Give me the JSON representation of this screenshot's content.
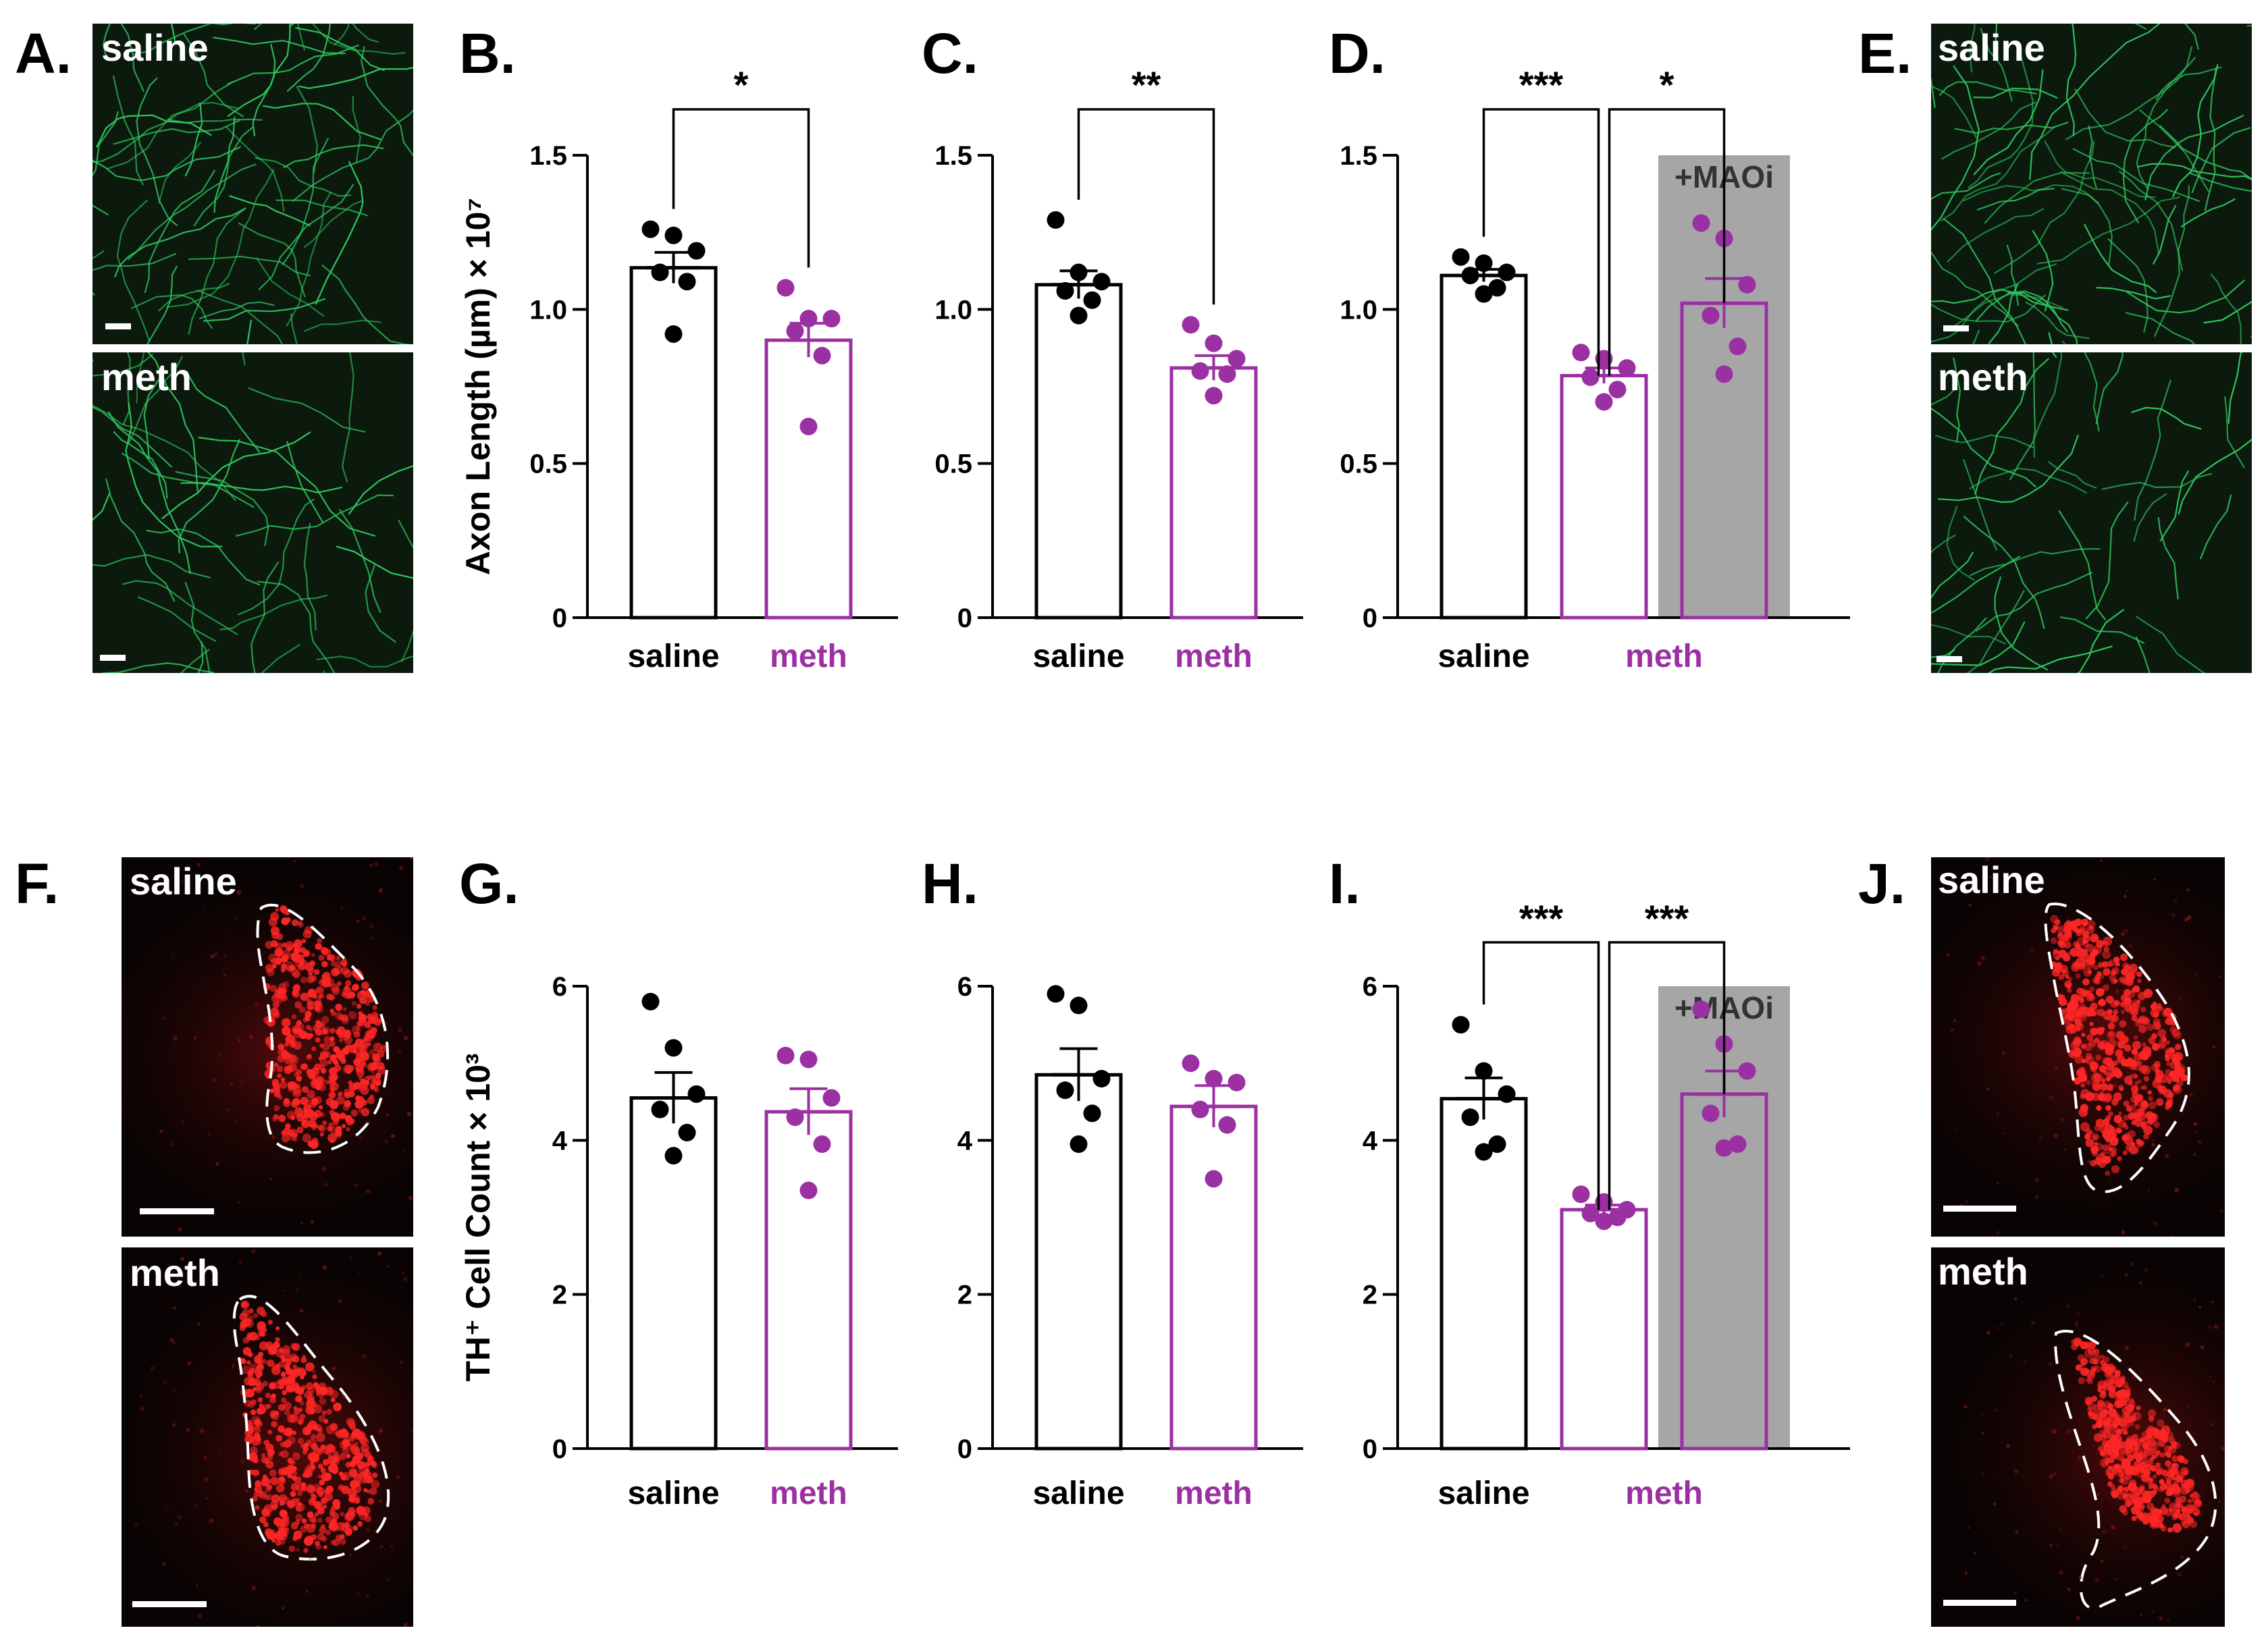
{
  "panels": {
    "A": {
      "letter": "A.",
      "top": "saline",
      "bottom": "meth"
    },
    "E": {
      "letter": "E.",
      "top": "saline",
      "bottom": "meth"
    },
    "F": {
      "letter": "F.",
      "top": "saline",
      "bottom": "meth"
    },
    "J": {
      "letter": "J.",
      "top": "saline",
      "bottom": "meth"
    }
  },
  "colors": {
    "saline": "#000000",
    "meth": "#9b30a3",
    "maoi_shade": "#a6a6a6",
    "axon_green": "#2fc860",
    "th_red": "#ff2626",
    "green_bg": "#0b1a0d",
    "red_bg": "#0a0303"
  },
  "chart_data": [
    {
      "panel": "B.",
      "type": "bar",
      "row": "axon",
      "categories": [
        "saline",
        "meth"
      ],
      "series": [
        {
          "name": "saline",
          "mean": 1.135,
          "sem": 0.05,
          "points": [
            1.26,
            1.24,
            1.19,
            1.12,
            1.09,
            0.92
          ]
        },
        {
          "name": "meth",
          "mean": 0.9,
          "sem": 0.055,
          "points": [
            1.07,
            0.97,
            0.97,
            0.93,
            0.85,
            0.62
          ]
        }
      ],
      "ylim": [
        0,
        1.5
      ],
      "yticks": [
        "0",
        "0.5",
        "1.0",
        "1.5"
      ],
      "ylabel": "Axon Length (µm) × 10⁷",
      "significance": [
        {
          "between": [
            "saline",
            "meth"
          ],
          "label": "*"
        }
      ]
    },
    {
      "panel": "C.",
      "type": "bar",
      "row": "axon",
      "categories": [
        "saline",
        "meth"
      ],
      "series": [
        {
          "name": "saline",
          "mean": 1.08,
          "sem": 0.045,
          "points": [
            1.29,
            1.12,
            1.09,
            1.06,
            1.03,
            0.98
          ]
        },
        {
          "name": "meth",
          "mean": 0.81,
          "sem": 0.04,
          "points": [
            0.95,
            0.89,
            0.84,
            0.8,
            0.79,
            0.72
          ]
        }
      ],
      "ylim": [
        0,
        1.5
      ],
      "yticks": [
        "0",
        "0.5",
        "1.0",
        "1.5"
      ],
      "significance": [
        {
          "between": [
            "saline",
            "meth"
          ],
          "label": "**"
        }
      ]
    },
    {
      "panel": "D.",
      "type": "bar",
      "row": "axon",
      "categories": [
        "saline",
        "meth",
        "meth +MAOi"
      ],
      "category_labels": [
        "saline",
        "meth"
      ],
      "shade_label": "+MAOi",
      "series": [
        {
          "name": "saline",
          "mean": 1.11,
          "sem": 0.02,
          "points": [
            1.17,
            1.15,
            1.12,
            1.11,
            1.07,
            1.05
          ]
        },
        {
          "name": "meth",
          "mean": 0.785,
          "sem": 0.025,
          "points": [
            0.86,
            0.84,
            0.81,
            0.78,
            0.74,
            0.7
          ]
        },
        {
          "name": "meth +MAOi",
          "mean": 1.02,
          "sem": 0.08,
          "points": [
            1.28,
            1.23,
            1.08,
            0.98,
            0.88,
            0.79
          ]
        }
      ],
      "ylim": [
        0,
        1.5
      ],
      "yticks": [
        "0",
        "0.5",
        "1.0",
        "1.5"
      ],
      "significance": [
        {
          "between": [
            "saline",
            "meth"
          ],
          "label": "***"
        },
        {
          "between": [
            "meth",
            "meth +MAOi"
          ],
          "label": "*"
        }
      ]
    },
    {
      "panel": "G.",
      "type": "bar",
      "row": "th",
      "categories": [
        "saline",
        "meth"
      ],
      "series": [
        {
          "name": "saline",
          "mean": 4.55,
          "sem": 0.33,
          "points": [
            5.8,
            5.2,
            4.6,
            4.4,
            4.1,
            3.8
          ]
        },
        {
          "name": "meth",
          "mean": 4.37,
          "sem": 0.3,
          "points": [
            5.1,
            5.05,
            4.55,
            4.3,
            3.95,
            3.35
          ]
        }
      ],
      "ylim": [
        0,
        6
      ],
      "yticks": [
        "0",
        "2",
        "4",
        "6"
      ],
      "ylabel": "TH⁺ Cell Count × 10³"
    },
    {
      "panel": "H.",
      "type": "bar",
      "row": "th",
      "categories": [
        "saline",
        "meth"
      ],
      "series": [
        {
          "name": "saline",
          "mean": 4.85,
          "sem": 0.34,
          "points": [
            5.9,
            5.75,
            4.8,
            4.65,
            4.35,
            3.95
          ]
        },
        {
          "name": "meth",
          "mean": 4.44,
          "sem": 0.27,
          "points": [
            5.0,
            4.8,
            4.75,
            4.4,
            4.2,
            3.5
          ]
        }
      ],
      "ylim": [
        0,
        6
      ],
      "yticks": [
        "0",
        "2",
        "4",
        "6"
      ]
    },
    {
      "panel": "I.",
      "type": "bar",
      "row": "th",
      "categories": [
        "saline",
        "meth",
        "meth +MAOi"
      ],
      "category_labels": [
        "saline",
        "meth"
      ],
      "shade_label": "+MAOi",
      "series": [
        {
          "name": "saline",
          "mean": 4.54,
          "sem": 0.27,
          "points": [
            5.5,
            4.9,
            4.6,
            4.3,
            3.95,
            3.85
          ]
        },
        {
          "name": "meth",
          "mean": 3.1,
          "sem": 0.06,
          "points": [
            3.3,
            3.2,
            3.1,
            3.05,
            3.0,
            2.95
          ]
        },
        {
          "name": "meth +MAOi",
          "mean": 4.6,
          "sem": 0.3,
          "points": [
            5.7,
            5.25,
            4.9,
            4.35,
            3.95,
            3.9
          ]
        }
      ],
      "ylim": [
        0,
        6
      ],
      "yticks": [
        "0",
        "2",
        "4",
        "6"
      ],
      "significance": [
        {
          "between": [
            "saline",
            "meth"
          ],
          "label": "***"
        },
        {
          "between": [
            "meth",
            "meth +MAOi"
          ],
          "label": "***"
        }
      ]
    }
  ]
}
